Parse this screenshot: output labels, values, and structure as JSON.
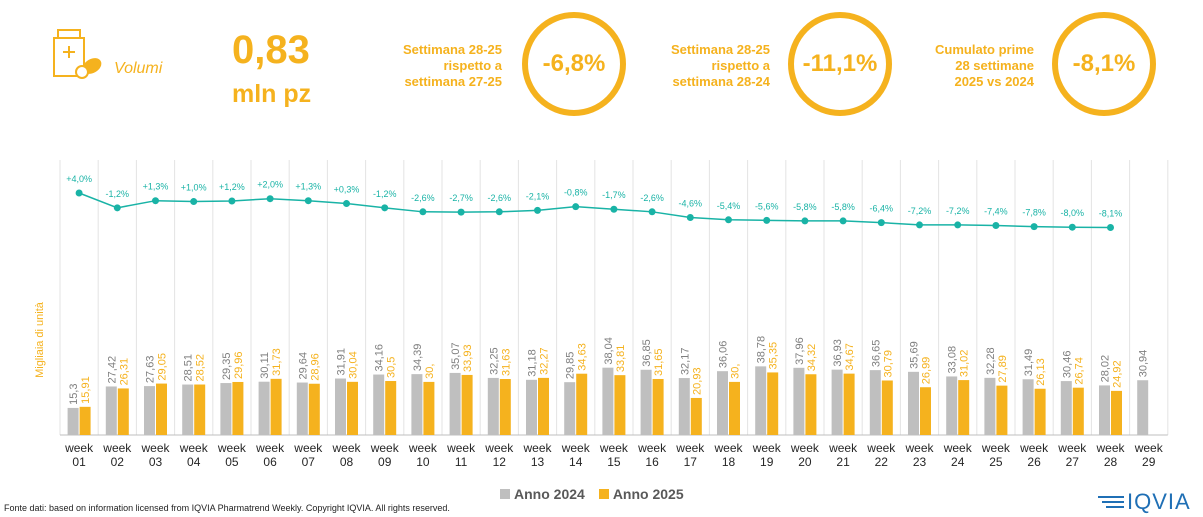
{
  "header": {
    "kpi_label": "Volumi",
    "kpi_value": "0,83",
    "kpi_unit": "mln pz",
    "comparisons": [
      {
        "text": "Settimana 28-25\nrispetto a\nsettimana 27-25",
        "value": "-6,8%"
      },
      {
        "text": "Settimana 28-25\nrispetto a\nsettimana 28-24",
        "value": "-11,1%"
      },
      {
        "text": "Cumulato prime\n28 settimane\n2025 vs 2024",
        "value": "-8,1%"
      }
    ]
  },
  "colors": {
    "accent": "#F5B21E",
    "series_2024": "#BFBFBF",
    "series_2025": "#F5B21E",
    "line": "#19B3A6"
  },
  "chart_data": {
    "type": "bar",
    "ylabel": "Migliaia di unità",
    "categories": [
      "week\n01",
      "week\n02",
      "week\n03",
      "week\n04",
      "week\n05",
      "week\n06",
      "week\n07",
      "week\n08",
      "week\n09",
      "week\n10",
      "week\n11",
      "week\n12",
      "week\n13",
      "week\n14",
      "week\n15",
      "week\n16",
      "week\n17",
      "week\n18",
      "week\n19",
      "week\n20",
      "week\n21",
      "week\n22",
      "week\n23",
      "week\n24",
      "week\n25",
      "week\n26",
      "week\n27",
      "week\n28",
      "week\n29"
    ],
    "series": [
      {
        "name": "Anno 2024",
        "values": [
          15.3,
          27.42,
          27.63,
          28.51,
          29.35,
          30.11,
          29.64,
          31.91,
          34.16,
          34.39,
          35.07,
          32.25,
          31.18,
          29.85,
          38.04,
          36.85,
          32.17,
          36.06,
          38.78,
          37.96,
          36.93,
          36.65,
          35.69,
          33.08,
          32.28,
          31.49,
          30.46,
          28.02,
          30.94
        ],
        "labels": [
          "15,3",
          "27,42",
          "27,63",
          "28,51",
          "29,35",
          "30,11",
          "29,64",
          "31,91",
          "34,16",
          "34,39",
          "35,07",
          "32,25",
          "31,18",
          "29,85",
          "38,04",
          "36,85",
          "32,17",
          "36,06",
          "38,78",
          "37,96",
          "36,93",
          "36,65",
          "35,69",
          "33,08",
          "32,28",
          "31,49",
          "30,46",
          "28,02",
          "30,94"
        ]
      },
      {
        "name": "Anno 2025",
        "values": [
          15.91,
          26.31,
          29.05,
          28.52,
          29.96,
          31.73,
          28.96,
          30.04,
          30.5,
          30,
          33.93,
          31.63,
          32.27,
          34.63,
          33.81,
          31.65,
          20.93,
          30,
          35.35,
          34.32,
          34.67,
          30.79,
          26.99,
          31.02,
          27.89,
          26.13,
          26.74,
          24.92,
          null
        ],
        "labels": [
          "15,91",
          "26,31",
          "29,05",
          "28,52",
          "29,96",
          "31,73",
          "28,96",
          "30,04",
          "30,5",
          "30,",
          "33,93",
          "31,63",
          "32,27",
          "34,63",
          "33,81",
          "31,65",
          "20,93",
          "30,",
          "35,35",
          "34,32",
          "34,67",
          "30,79",
          "26,99",
          "31,02",
          "27,89",
          "26,13",
          "26,74",
          "24,92",
          ""
        ]
      }
    ],
    "cumulative_change": {
      "values": [
        4.0,
        -1.2,
        1.3,
        1.0,
        1.2,
        2.0,
        1.3,
        0.3,
        -1.2,
        -2.6,
        -2.7,
        -2.6,
        -2.1,
        -0.8,
        -1.7,
        -2.6,
        -4.6,
        -5.4,
        -5.6,
        -5.8,
        -5.8,
        -6.4,
        -7.2,
        -7.2,
        -7.4,
        -7.8,
        -8.0,
        -8.1
      ],
      "labels": [
        "+4,0%",
        "-1,2%",
        "+1,3%",
        "+1,0%",
        "+1,2%",
        "+2,0%",
        "+1,3%",
        "+0,3%",
        "-1,2%",
        "-2,6%",
        "-2,7%",
        "-2,6%",
        "-2,1%",
        "-0,8%",
        "-1,7%",
        "-2,6%",
        "-4,6%",
        "-5,4%",
        "-5,6%",
        "-5,8%",
        "-5,8%",
        "-6,4%",
        "-7,2%",
        "-7,2%",
        "-7,4%",
        "-7,8%",
        "-8,0%",
        "-8,1%"
      ]
    },
    "legend_position": "bottom"
  },
  "footer": {
    "source": "Fonte dati: based on information licensed from IQVIA Pharmatrend Weekly. Copyright IQVIA. All rights reserved.",
    "logo": "IQVIA"
  }
}
